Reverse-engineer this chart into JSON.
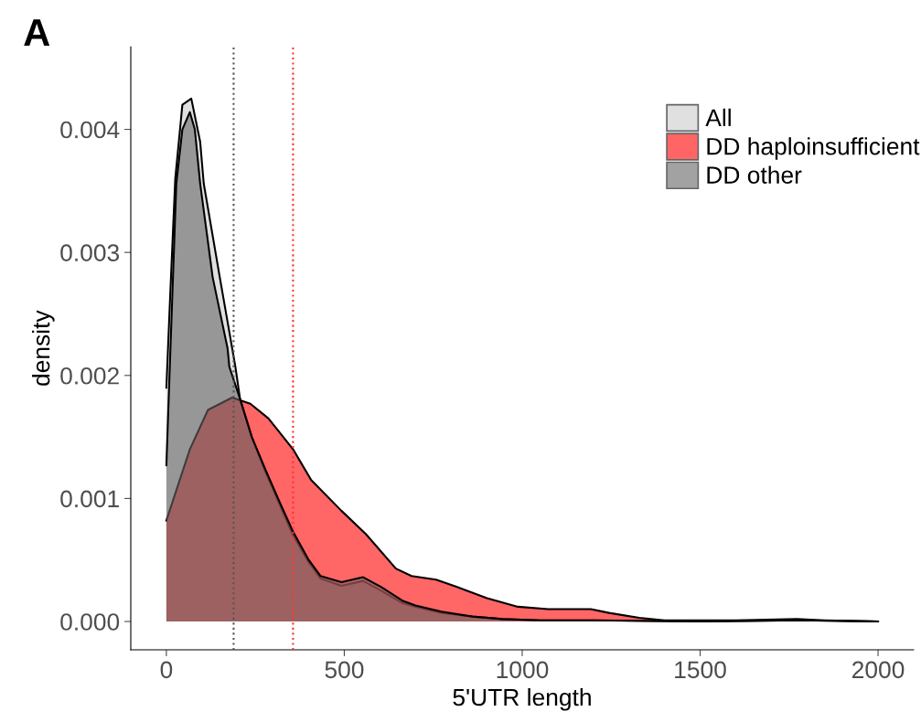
{
  "chart_data": {
    "type": "area",
    "title": "A",
    "xlabel": "5'UTR length",
    "ylabel": "density",
    "series": [
      {
        "name": "All",
        "color": "#cccccc",
        "x": [
          0,
          10,
          25,
          45,
          70,
          95,
          105,
          150,
          185,
          194,
          207,
          240,
          279,
          320,
          356,
          400,
          433,
          492,
          553,
          604,
          663,
          700,
          773,
          860,
          945,
          1050,
          1200,
          1500,
          1780,
          2000
        ],
        "values": [
          0.0019,
          0.0026,
          0.0036,
          0.0042,
          0.00425,
          0.0039,
          0.00356,
          0.0028,
          0.00222,
          0.00207,
          0.00181,
          0.0015,
          0.00121,
          0.00094,
          0.0007,
          0.00048,
          0.00035,
          0.00029,
          0.00033,
          0.00025,
          0.00015,
          0.00012,
          7e-05,
          4e-05,
          2e-05,
          1e-05,
          1e-05,
          0,
          1e-05,
          0
        ]
      },
      {
        "name": "DD haploinsufficient",
        "color": "#ff0000",
        "x": [
          0,
          66,
          117,
          185,
          236,
          287,
          356,
          407,
          492,
          561,
          645,
          689,
          758,
          817,
          901,
          988,
          1073,
          1193,
          1244,
          1329,
          1400,
          1600,
          1772,
          1850,
          2000
        ],
        "values": [
          0.00082,
          0.0014,
          0.00172,
          0.00182,
          0.00177,
          0.00165,
          0.0014,
          0.00115,
          0.0009,
          0.00071,
          0.00043,
          0.00037,
          0.00034,
          0.00028,
          0.00019,
          0.00012,
          0.0001,
          0.0001,
          7e-05,
          3e-05,
          1e-05,
          1e-05,
          2e-05,
          1e-05,
          0
        ]
      },
      {
        "name": "DD other",
        "color": "#666666",
        "x": [
          0,
          10,
          28,
          45,
          66,
          80,
          95,
          130,
          172,
          177,
          207,
          240,
          279,
          320,
          356,
          400,
          433,
          492,
          553,
          604,
          663,
          700,
          773,
          860,
          945,
          1050,
          1200,
          1500,
          1780,
          2000
        ],
        "values": [
          0.00127,
          0.0021,
          0.00356,
          0.004,
          0.00414,
          0.004,
          0.00356,
          0.0028,
          0.00222,
          0.00207,
          0.00181,
          0.0015,
          0.00123,
          0.00096,
          0.00073,
          0.0005,
          0.00037,
          0.00032,
          0.00036,
          0.00028,
          0.00017,
          0.00013,
          8e-05,
          4e-05,
          2e-05,
          1e-05,
          1e-05,
          0,
          1e-05,
          0
        ]
      }
    ],
    "ref_lines": [
      {
        "axis": "x",
        "value": 189,
        "color": "#555555",
        "line_style": "dotted"
      },
      {
        "axis": "x",
        "value": 356,
        "color": "#ff3333",
        "line_style": "dotted"
      }
    ],
    "xlim": [
      -100,
      2100
    ],
    "xticks": [
      0,
      500,
      1000,
      1500,
      2000
    ],
    "ylim": [
      -0.00023,
      0.00467
    ],
    "yticks": [
      {
        "value": 0,
        "label": "0.000"
      },
      {
        "value": 0.001,
        "label": "0.001"
      },
      {
        "value": 0.002,
        "label": "0.002"
      },
      {
        "value": 0.003,
        "label": "0.003"
      },
      {
        "value": 0.004,
        "label": "0.004"
      }
    ],
    "grid": false,
    "legend": "top right"
  }
}
